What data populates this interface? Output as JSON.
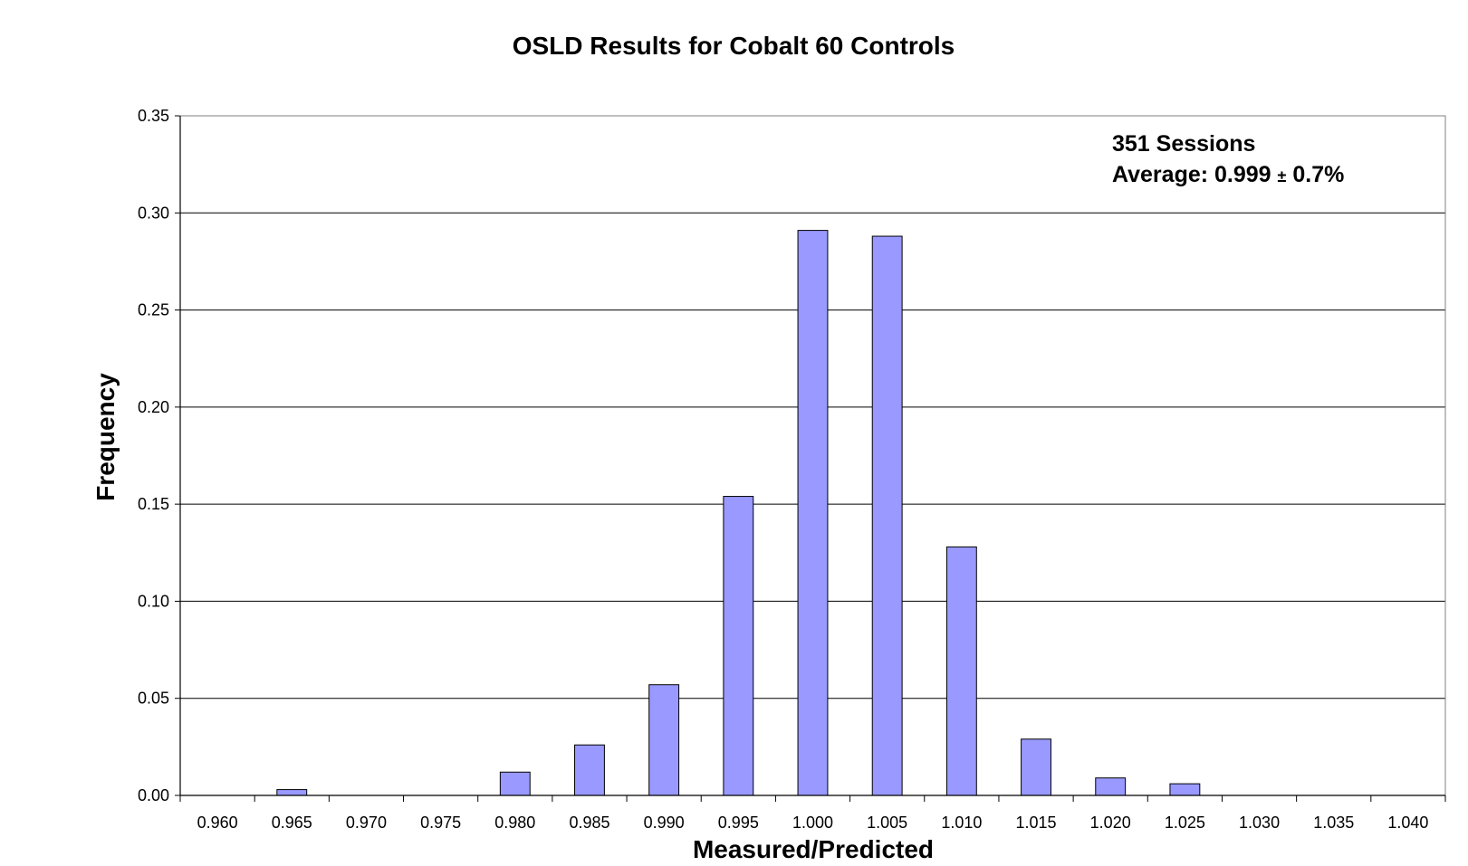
{
  "chart_data": {
    "type": "bar",
    "title": "OSLD Results for Cobalt 60 Controls",
    "xlabel": "Measured/Predicted",
    "ylabel": "Frequency",
    "categories": [
      "0.960",
      "0.965",
      "0.970",
      "0.975",
      "0.980",
      "0.985",
      "0.990",
      "0.995",
      "1.000",
      "1.005",
      "1.010",
      "1.015",
      "1.020",
      "1.025",
      "1.030",
      "1.035",
      "1.040"
    ],
    "values": [
      0.0,
      0.003,
      0.0,
      0.0,
      0.012,
      0.026,
      0.057,
      0.154,
      0.291,
      0.288,
      0.128,
      0.029,
      0.009,
      0.006,
      0.0,
      0.0,
      0.0
    ],
    "ylim": [
      0,
      0.35
    ],
    "yticks": [
      "0.00",
      "0.05",
      "0.10",
      "0.15",
      "0.20",
      "0.25",
      "0.30",
      "0.35"
    ],
    "grid": true,
    "legend": "none",
    "bar_color": "#9999FF",
    "annotations": {
      "line1": "351 Sessions",
      "line2_prefix": "Average: 0.999 ",
      "line2_pm": "±",
      "line2_suffix": " 0.7%"
    }
  }
}
